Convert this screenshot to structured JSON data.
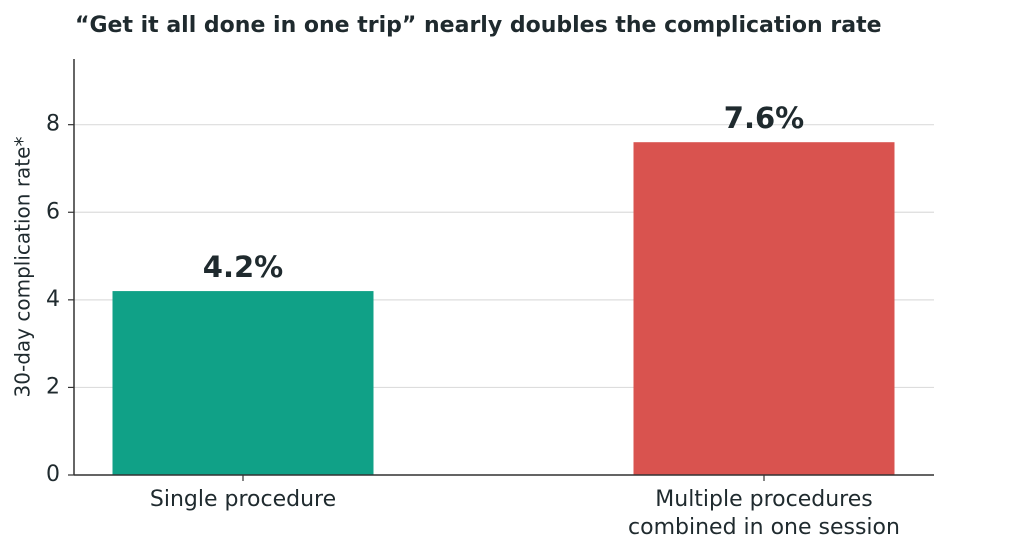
{
  "chart_data": {
    "type": "bar",
    "title": "“Get it all done in one trip” nearly doubles the complication rate",
    "y_label": "30-day complication rate*",
    "categories": [
      "Single procedure",
      "Multiple procedures\ncombined in one session"
    ],
    "values": [
      4.2,
      7.6
    ],
    "value_labels": [
      "4.2%",
      "7.6%"
    ],
    "colors": [
      "#10a187",
      "#d9534f"
    ],
    "ylim": [
      0,
      9.5
    ],
    "yticks": [
      0,
      2,
      4,
      6,
      8
    ],
    "grid": true
  }
}
